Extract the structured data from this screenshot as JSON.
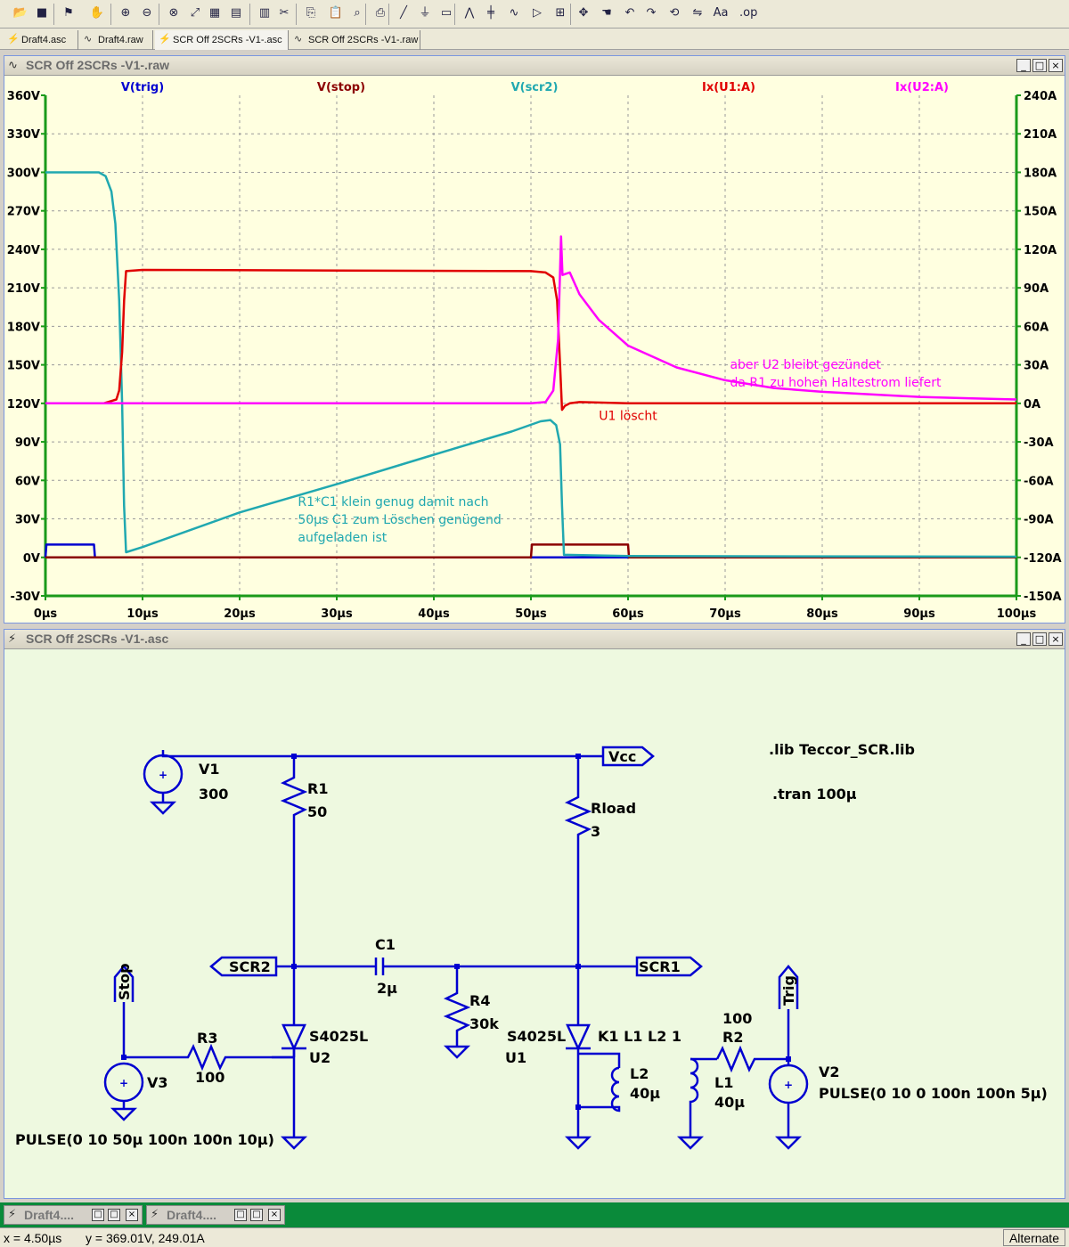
{
  "tabs": [
    {
      "label": "Draft4.asc",
      "icon": "schematic-icon"
    },
    {
      "label": "Draft4.raw",
      "icon": "waveform-icon"
    },
    {
      "label": "SCR Off 2SCRs -V1-.asc",
      "icon": "schematic-icon"
    },
    {
      "label": "SCR Off 2SCRs -V1-.raw",
      "icon": "waveform-icon"
    }
  ],
  "plot_window": {
    "title": "SCR Off 2SCRs -V1-.raw"
  },
  "schematic_window": {
    "title": "SCR Off 2SCRs -V1-.asc"
  },
  "window_controls": {
    "minimize": "_",
    "restore": "□",
    "close": "×"
  },
  "chart_data": {
    "type": "line",
    "x_unit": "µs",
    "xlim": [
      0,
      100
    ],
    "x_ticks": [
      "0µs",
      "10µs",
      "20µs",
      "30µs",
      "40µs",
      "50µs",
      "60µs",
      "70µs",
      "80µs",
      "90µs",
      "100µs"
    ],
    "ylim_left": [
      -30,
      360
    ],
    "y_ticks_left": [
      "360V",
      "330V",
      "300V",
      "270V",
      "240V",
      "210V",
      "180V",
      "150V",
      "120V",
      "90V",
      "60V",
      "30V",
      "0V",
      "-30V"
    ],
    "ylim_right": [
      -150,
      240
    ],
    "y_ticks_right": [
      "240A",
      "210A",
      "180A",
      "150A",
      "120A",
      "90A",
      "60A",
      "30A",
      "0A",
      "-30A",
      "-60A",
      "-90A",
      "-120A",
      "-150A"
    ],
    "grid": true,
    "series": [
      {
        "name": "V(trig)",
        "axis": "left",
        "color": "#0000d0",
        "points": [
          [
            0,
            0
          ],
          [
            0.1,
            10
          ],
          [
            5,
            10
          ],
          [
            5.1,
            0
          ],
          [
            100,
            0
          ]
        ]
      },
      {
        "name": "V(stop)",
        "axis": "left",
        "color": "#8b0000",
        "points": [
          [
            0,
            0
          ],
          [
            50,
            0
          ],
          [
            50.1,
            10
          ],
          [
            60,
            10
          ],
          [
            60.1,
            0
          ],
          [
            100,
            0
          ]
        ]
      },
      {
        "name": "V(scr2)",
        "axis": "left",
        "color": "#20a8b0",
        "points": [
          [
            0,
            300
          ],
          [
            5.5,
            300
          ],
          [
            6.2,
            297
          ],
          [
            6.8,
            285
          ],
          [
            7.2,
            260
          ],
          [
            7.6,
            200
          ],
          [
            7.9,
            120
          ],
          [
            8.1,
            40
          ],
          [
            8.3,
            4
          ],
          [
            10,
            8
          ],
          [
            20,
            35
          ],
          [
            30,
            57
          ],
          [
            40,
            80
          ],
          [
            48,
            98
          ],
          [
            51,
            106
          ],
          [
            52,
            107
          ],
          [
            52.6,
            103
          ],
          [
            53.0,
            88
          ],
          [
            53.2,
            40
          ],
          [
            53.4,
            2
          ],
          [
            60,
            1
          ],
          [
            100,
            0.5
          ]
        ]
      },
      {
        "name": "Ix(U1:A)",
        "axis": "right",
        "color": "#e00000",
        "points": [
          [
            0,
            0
          ],
          [
            6,
            0
          ],
          [
            7.3,
            3
          ],
          [
            7.6,
            10
          ],
          [
            7.9,
            40
          ],
          [
            8.1,
            80
          ],
          [
            8.3,
            103
          ],
          [
            10,
            104
          ],
          [
            50,
            103
          ],
          [
            51.5,
            102
          ],
          [
            52.3,
            98
          ],
          [
            52.7,
            80
          ],
          [
            53.0,
            30
          ],
          [
            53.2,
            -5
          ],
          [
            53.5,
            -2
          ],
          [
            54,
            0
          ],
          [
            55,
            1
          ],
          [
            60,
            0
          ],
          [
            100,
            0
          ]
        ]
      },
      {
        "name": "Ix(U2:A)",
        "axis": "right",
        "color": "#ff00ff",
        "points": [
          [
            0,
            0
          ],
          [
            50,
            0
          ],
          [
            51.5,
            1
          ],
          [
            52.3,
            10
          ],
          [
            52.8,
            50
          ],
          [
            53.1,
            130
          ],
          [
            53.25,
            100
          ],
          [
            54,
            102
          ],
          [
            55,
            85
          ],
          [
            57,
            65
          ],
          [
            60,
            45
          ],
          [
            65,
            28
          ],
          [
            70,
            18
          ],
          [
            75,
            12
          ],
          [
            80,
            9
          ],
          [
            85,
            7
          ],
          [
            90,
            5
          ],
          [
            95,
            4
          ],
          [
            100,
            3
          ]
        ]
      }
    ],
    "annotations": [
      {
        "lines": [
          "aber U2 bleibt gezündet",
          "da R1 zu hohen Haltestrom liefert"
        ],
        "color": "#ff00ff",
        "x": 70.5,
        "y": 147,
        "axis": "left"
      },
      {
        "lines": [
          "U1 löscht"
        ],
        "color": "#e00000",
        "x": 57,
        "y": 107,
        "axis": "left"
      },
      {
        "lines": [
          "R1*C1 klein genug damit nach",
          "50µs C1 zum Löschen genügend",
          "aufgeladen ist"
        ],
        "color": "#20a8b0",
        "x": 26,
        "y": 40,
        "axis": "left"
      }
    ]
  },
  "schematic": {
    "directives": [
      ".lib Teccor_SCR.lib",
      ".tran 100µ"
    ],
    "nets": {
      "vcc": "Vcc",
      "scr1": "SCR1",
      "scr2": "SCR2",
      "stop": "Stop",
      "trig": "Trig"
    },
    "components": {
      "v1": {
        "name": "V1",
        "value": "300"
      },
      "r1": {
        "name": "R1",
        "value": "50"
      },
      "rload": {
        "name": "Rload",
        "value": "3"
      },
      "c1": {
        "name": "C1",
        "value": "2µ"
      },
      "r4": {
        "name": "R4",
        "value": "30k"
      },
      "u2": {
        "name": "U2",
        "model": "S4025L"
      },
      "u1": {
        "name": "U1",
        "model": "S4025L"
      },
      "k1": {
        "text": "K1 L1 L2  1"
      },
      "l2": {
        "name": "L2",
        "value": "40µ"
      },
      "l1": {
        "name": "L1",
        "value": "40µ"
      },
      "r2": {
        "name": "R2",
        "value": "100"
      },
      "r3": {
        "name": "R3",
        "value": "100"
      },
      "v3": {
        "name": "V3",
        "value": "PULSE(0 10 50µ 100n 100n 10µ)"
      },
      "v2": {
        "name": "V2",
        "value": "PULSE(0 10 0 100n 100n 5µ)"
      }
    }
  },
  "taskbar": [
    {
      "title": "Draft4....",
      "icon": "schematic-icon"
    },
    {
      "title": "Draft4....",
      "icon": "schematic-icon"
    }
  ],
  "status": {
    "x": "x = 4.50µs",
    "y": "y = 369.01V, 249.01A",
    "mode": "Alternate"
  }
}
